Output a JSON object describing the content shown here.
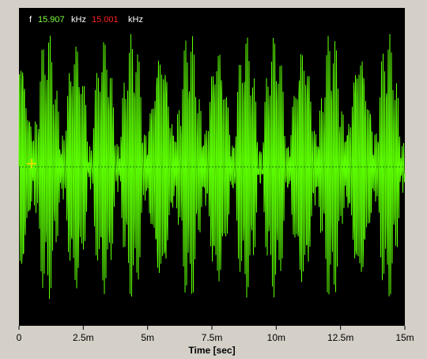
{
  "chart_data": {
    "type": "line",
    "x_label": "Time [sec]",
    "xlim": [
      0,
      0.015
    ],
    "xticks": [
      0,
      {
        "value": 0.0025,
        "label": "2.5m"
      },
      {
        "value": 0.005,
        "label": "5m"
      },
      {
        "value": 0.0075,
        "label": "7.5m"
      },
      {
        "value": 0.01,
        "label": "10m"
      },
      {
        "value": 0.0125,
        "label": "12.5m"
      },
      {
        "value": 0.015,
        "label": "15m"
      }
    ],
    "color": "#5cff00",
    "readout": {
      "label": "f",
      "f1": 15.907,
      "f1_unit": "kHz",
      "f2": 15.001,
      "f2_unit": "kHz"
    }
  }
}
